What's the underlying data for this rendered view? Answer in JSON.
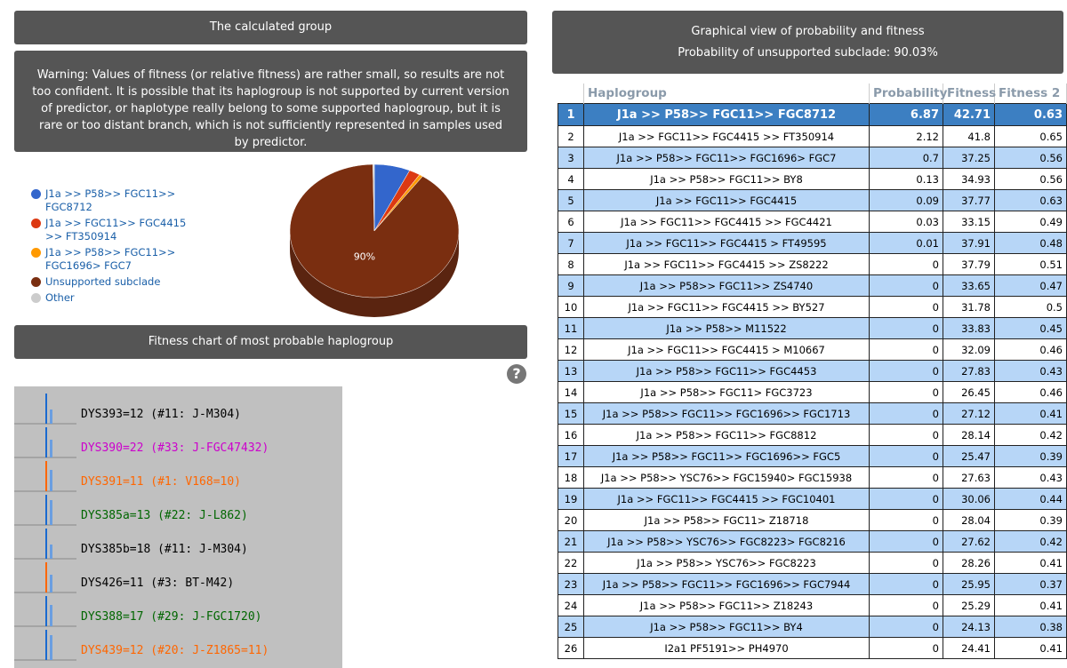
{
  "left": {
    "header": "The calculated group",
    "warning": "Warning: Values of fitness (or relative fitness) are rather small, so results are not too confident. It is possible that its haplogroup is not supported by current version of predictor, or haplotype really belong to some supported haplogroup, but it is rare or too distant branch, which is not sufficiently represented in samples used by predictor.",
    "pie": {
      "type": "pie",
      "slices": [
        {
          "name": "J1a >> P58>> FGC11>> FGC8712",
          "color": "#3366cc",
          "value": 6.87
        },
        {
          "name": "J1a >> FGC11>> FGC4415 >> FT350914",
          "color": "#dc3912",
          "value": 2.12
        },
        {
          "name": "J1a >> P58>> FGC11>> FGC1696> FGC7",
          "color": "#ff9900",
          "value": 0.7
        },
        {
          "name": "Unsupported subclade",
          "color": "#7a2e10",
          "value": 90.03,
          "label": "90%"
        },
        {
          "name": "Other",
          "color": "#cccccc",
          "value": 0.28
        }
      ]
    },
    "fitness_header": "Fitness chart of most probable haplogroup",
    "help": "?",
    "fitness_rows": [
      {
        "text": "DYS393=12 (#11: J-M304)",
        "color": "#000000"
      },
      {
        "text": "DYS390=22 (#33: J-FGC47432)",
        "color": "#cc00cc"
      },
      {
        "text": "DYS391=11 (#1: V168=10)",
        "color": "#ff6600"
      },
      {
        "text": "DYS385a=13 (#22: J-L862)",
        "color": "#006600"
      },
      {
        "text": "DYS385b=18 (#11: J-M304)",
        "color": "#000000"
      },
      {
        "text": "DYS426=11 (#3: BT-M42)",
        "color": "#000000"
      },
      {
        "text": "DYS388=17 (#29: J-FGC1720)",
        "color": "#006600"
      },
      {
        "text": "DYS439=12 (#20: J-Z1865=11)",
        "color": "#ff6600"
      }
    ]
  },
  "right": {
    "header": "Graphical view of probability and fitness",
    "subheader": "Probability of unsupported subclade: 90.03%",
    "table": {
      "columns": [
        "",
        "Haplogroup",
        "Probability",
        "Fitness",
        "Fitness 2"
      ],
      "rows": [
        [
          "1",
          "J1a >> P58>> FGC11>> FGC8712",
          "6.87",
          "42.71",
          "0.63"
        ],
        [
          "2",
          "J1a >> FGC11>> FGC4415 >> FT350914",
          "2.12",
          "41.8",
          "0.65"
        ],
        [
          "3",
          "J1a >> P58>> FGC11>> FGC1696> FGC7",
          "0.7",
          "37.25",
          "0.56"
        ],
        [
          "4",
          "J1a >> P58>> FGC11>> BY8",
          "0.13",
          "34.93",
          "0.56"
        ],
        [
          "5",
          "J1a >> FGC11>> FGC4415",
          "0.09",
          "37.77",
          "0.63"
        ],
        [
          "6",
          "J1a >> FGC11>> FGC4415 >> FGC4421",
          "0.03",
          "33.15",
          "0.49"
        ],
        [
          "7",
          "J1a >> FGC11>> FGC4415 > FT49595",
          "0.01",
          "37.91",
          "0.48"
        ],
        [
          "8",
          "J1a >> FGC11>> FGC4415 >> ZS8222",
          "0",
          "37.79",
          "0.51"
        ],
        [
          "9",
          "J1a >> P58>> FGC11>> ZS4740",
          "0",
          "33.65",
          "0.47"
        ],
        [
          "10",
          "J1a >> FGC11>> FGC4415 >> BY527",
          "0",
          "31.78",
          "0.5"
        ],
        [
          "11",
          "J1a >> P58>> M11522",
          "0",
          "33.83",
          "0.45"
        ],
        [
          "12",
          "J1a >> FGC11>> FGC4415 > M10667",
          "0",
          "32.09",
          "0.46"
        ],
        [
          "13",
          "J1a >> P58>> FGC11>> FGC4453",
          "0",
          "27.83",
          "0.43"
        ],
        [
          "14",
          "J1a >> P58>> FGC11> FGC3723",
          "0",
          "26.45",
          "0.46"
        ],
        [
          "15",
          "J1a >> P58>> FGC11>> FGC1696>> FGC1713",
          "0",
          "27.12",
          "0.41"
        ],
        [
          "16",
          "J1a >> P58>> FGC11>> FGC8812",
          "0",
          "28.14",
          "0.42"
        ],
        [
          "17",
          "J1a >> P58>> FGC11>> FGC1696>> FGC5",
          "0",
          "25.47",
          "0.39"
        ],
        [
          "18",
          "J1a >> P58>> YSC76>> FGC15940> FGC15938",
          "0",
          "27.63",
          "0.43"
        ],
        [
          "19",
          "J1a >> FGC11>> FGC4415 >> FGC10401",
          "0",
          "30.06",
          "0.44"
        ],
        [
          "20",
          "J1a >> P58>> FGC11> Z18718",
          "0",
          "28.04",
          "0.39"
        ],
        [
          "21",
          "J1a >> P58>> YSC76>> FGC8223> FGC8216",
          "0",
          "27.62",
          "0.42"
        ],
        [
          "22",
          "J1a >> P58>> YSC76>> FGC8223",
          "0",
          "28.26",
          "0.41"
        ],
        [
          "23",
          "J1a >> P58>> FGC11>> FGC1696>> FGC7944",
          "0",
          "25.95",
          "0.37"
        ],
        [
          "24",
          "J1a >> P58>> FGC11>> Z18243",
          "0",
          "25.29",
          "0.41"
        ],
        [
          "25",
          "J1a >> P58>> FGC11>> BY4",
          "0",
          "24.13",
          "0.38"
        ],
        [
          "26",
          "I2a1 PF5191>> PH4970",
          "0",
          "24.41",
          "0.41"
        ]
      ]
    }
  }
}
